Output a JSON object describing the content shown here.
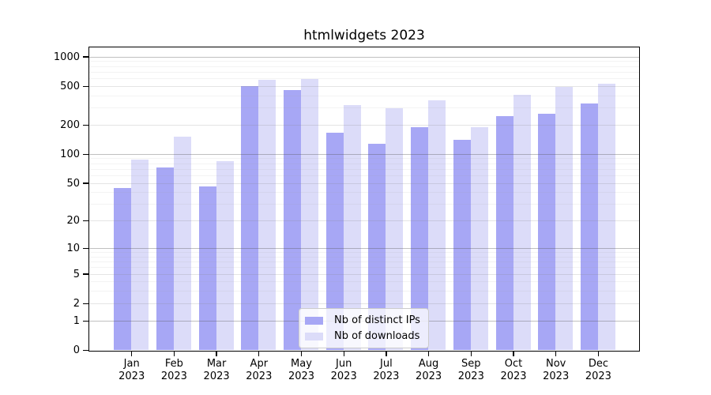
{
  "chart_data": {
    "type": "bar",
    "title": "htmlwidgets 2023",
    "categories": [
      "Jan",
      "Feb",
      "Mar",
      "Apr",
      "May",
      "Jun",
      "Jul",
      "Aug",
      "Sep",
      "Oct",
      "Nov",
      "Dec"
    ],
    "x_tick_second_line": "2023",
    "series": [
      {
        "key": "distinct-ips",
        "name": "Nb of distinct IPs",
        "color": "#a7a7f5",
        "values": [
          44,
          72,
          46,
          494,
          457,
          165,
          128,
          189,
          139,
          244,
          257,
          330
        ]
      },
      {
        "key": "downloads",
        "name": "Nb of downloads",
        "color": "#dcdcf9",
        "values": [
          88,
          152,
          85,
          583,
          587,
          320,
          293,
          357,
          187,
          407,
          493,
          524
        ]
      }
    ],
    "y_axis": {
      "scale": "log1p",
      "ticks": [
        0,
        1,
        2,
        5,
        10,
        20,
        50,
        100,
        200,
        500,
        1000
      ],
      "decade_lines": [
        1,
        10,
        100,
        1000
      ],
      "major_lines": [
        2,
        5,
        20,
        50,
        200,
        500
      ],
      "minor_lines": [
        3,
        4,
        6,
        7,
        8,
        9,
        30,
        40,
        60,
        70,
        80,
        90,
        300,
        400,
        600,
        700,
        800,
        900
      ],
      "ylim": [
        0,
        1200
      ]
    },
    "grid": true,
    "legend_position": "bottom-center"
  }
}
